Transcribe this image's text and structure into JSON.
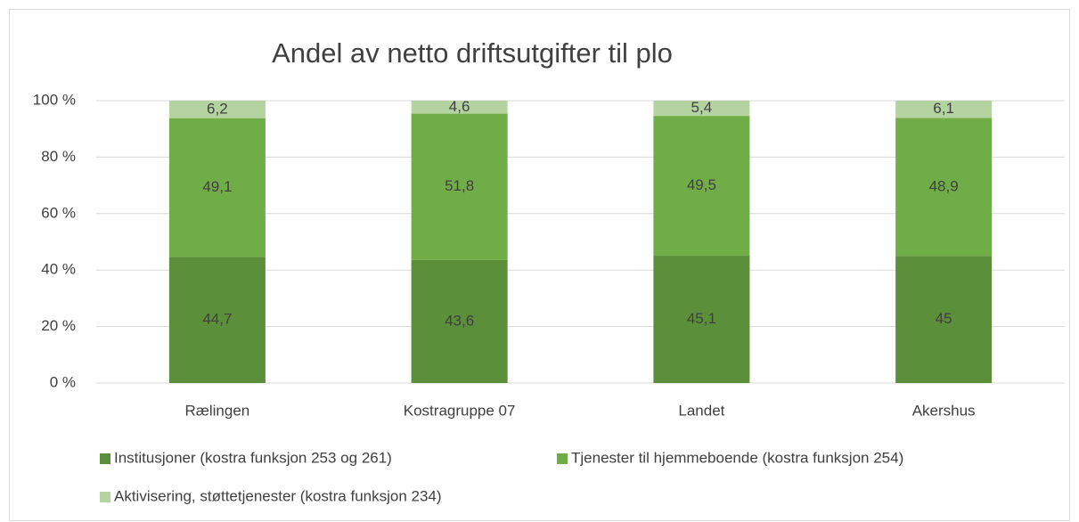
{
  "chart_data": {
    "type": "bar",
    "stacked": true,
    "title": "Andel av netto driftsutgifter til plo",
    "categories": [
      "Rælingen",
      "Kostragruppe 07",
      "Landet",
      "Akershus"
    ],
    "series": [
      {
        "name": "Institusjoner (kostra funksjon 253 og 261)",
        "color": "#5b8f3a",
        "values": [
          44.7,
          43.6,
          45.1,
          45
        ],
        "value_labels": [
          "44,7",
          "43,6",
          "45,1",
          "45"
        ]
      },
      {
        "name": "Tjenester til hjemmeboende (kostra funksjon 254)",
        "color": "#70ad47",
        "values": [
          49.1,
          51.8,
          49.5,
          48.9
        ],
        "value_labels": [
          "49,1",
          "51,8",
          "49,5",
          "48,9"
        ]
      },
      {
        "name": "Aktivisering, støttetjenester (kostra funksjon 234)",
        "color": "#b5d3a1",
        "values": [
          6.2,
          4.6,
          5.4,
          6.1
        ],
        "value_labels": [
          "6,2",
          "4,6",
          "5,4",
          "6,1"
        ]
      }
    ],
    "ylim": [
      0,
      100
    ],
    "yticks": [
      {
        "value": 0,
        "label": "0 %"
      },
      {
        "value": 20,
        "label": "20 %"
      },
      {
        "value": 40,
        "label": "40 %"
      },
      {
        "value": 60,
        "label": "60 %"
      },
      {
        "value": 80,
        "label": "80 %"
      },
      {
        "value": 100,
        "label": "100 %"
      }
    ],
    "grid": true,
    "legend": "bottom"
  }
}
